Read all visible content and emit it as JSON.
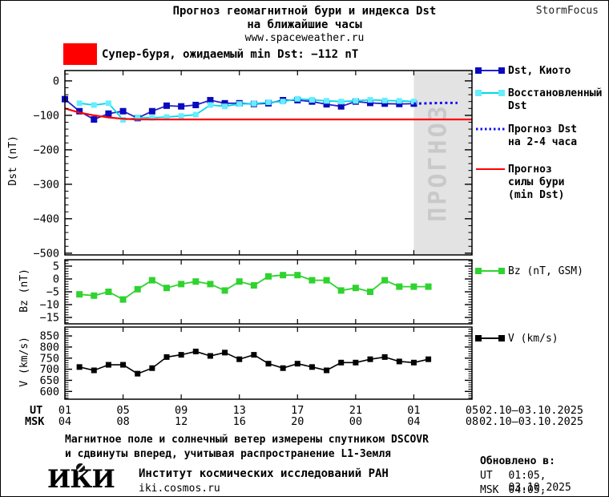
{
  "header": {
    "title_line1": "Прогноз геомагнитной бури и индекса Dst",
    "title_line2": "на ближайшие часы",
    "website": "www.spaceweather.ru",
    "brand": "StormFocus"
  },
  "storm_banner": {
    "swatch_color": "#FF0000",
    "text": "Супер-буря, ожидаемый min Dst: −112 nT"
  },
  "axis_titles": {
    "dst": "Dst (nT)",
    "bz": "Bz (nT)",
    "v": "V (km/s)"
  },
  "forecast_watermark": "ПРОГНОЗ",
  "legend": [
    {
      "label": "Dst, Киото",
      "color": "#2222CC",
      "marker_color": "#0A0ABE",
      "squares": true,
      "dotted": false
    },
    {
      "label": "Восстановленный\nDst",
      "color": "#00D9E9",
      "marker_color": "#66EEFF",
      "squares": true,
      "dotted": false
    },
    {
      "label": "Прогноз Dst\nна 2-4 часа",
      "color": "#1111EE",
      "marker_color": "#1111EE",
      "squares": false,
      "dotted": true
    },
    {
      "label": "Прогноз\nсилы бури\n(min Dst)",
      "color": "#FF0000",
      "marker_color": "#FF0000",
      "squares": false,
      "dotted": false
    },
    {
      "label": "Bz (nT, GSM)",
      "color": "#2FD32F",
      "marker_color": "#2FD32F",
      "squares": true,
      "dotted": false
    },
    {
      "label": "V (km/s)",
      "color": "#000000",
      "marker_color": "#000000",
      "squares": true,
      "dotted": false
    }
  ],
  "x_axis": {
    "ut_label": "UT",
    "msk_label": "MSK",
    "tick_hour_index": [
      0,
      4,
      8,
      12,
      16,
      20,
      24,
      28
    ],
    "ut_ticks": [
      "01",
      "05",
      "09",
      "13",
      "17",
      "21",
      "01",
      "05"
    ],
    "msk_ticks": [
      "04",
      "08",
      "12",
      "16",
      "20",
      "00",
      "04",
      "08"
    ],
    "date_range_ut": "02.10–03.10.2025",
    "date_range_msk": "02.10–03.10.2025"
  },
  "chart_data": [
    {
      "type": "line",
      "ylabel": "Dst (nT)",
      "ylim": [
        -505,
        30
      ],
      "minor_step": 20,
      "yticks": [
        {
          "v": 0,
          "label": "0"
        },
        {
          "v": -100,
          "label": "−100"
        },
        {
          "v": -200,
          "label": "−200"
        },
        {
          "v": -300,
          "label": "−300"
        },
        {
          "v": -400,
          "label": "−400"
        },
        {
          "v": -500,
          "label": "−500"
        }
      ],
      "x_start_hour_ut": 1,
      "forecast_region": {
        "start": 24,
        "color": "#E3E3E3",
        "label_color": "#C9C9C9"
      },
      "series": [
        {
          "name": "Dst, Киото",
          "color": "#2222CC",
          "marker_color": "#0A0ABE",
          "marker": 8,
          "width": 1.8,
          "style": "solid",
          "start": 0,
          "values": [
            -53,
            -88,
            -112,
            -95,
            -88,
            -108,
            -88,
            -72,
            -74,
            -70,
            -56,
            -65,
            -65,
            -67,
            -65,
            -56,
            -56,
            -60,
            -68,
            -74,
            -60,
            -64,
            -66,
            -67,
            -66
          ]
        },
        {
          "name": "Восстановленный Dst",
          "color": "#00D9E9",
          "marker_color": "#66EEFF",
          "marker": 7,
          "width": 1.8,
          "style": "solid",
          "start": 1,
          "values": [
            -65,
            -70,
            -65,
            -113,
            -107,
            -107,
            -105,
            -102,
            -98,
            -70,
            -74,
            -67,
            -66,
            -62,
            -60,
            -52,
            -55,
            -58,
            -60,
            -58,
            -55,
            -57,
            -58,
            -60
          ]
        },
        {
          "name": "Прогноз Dst на 2-4 часа",
          "color": "#1111EE",
          "marker": 0,
          "width": 3,
          "style": "dotted",
          "start": 24,
          "values": [
            -66,
            -65,
            -64,
            -64
          ]
        },
        {
          "name": "Прогноз силы бури (min Dst)",
          "color": "#FF0000",
          "marker": 0,
          "width": 2.2,
          "style": "solid",
          "start": 0,
          "values": [
            -80,
            -92,
            -100,
            -106,
            -110,
            -112,
            -112,
            -112,
            -112,
            -112,
            -112,
            -112,
            -112,
            -112,
            -112,
            -112,
            -112,
            -112,
            -112,
            -112,
            -112,
            -112,
            -112,
            -112,
            -112,
            -112,
            -112,
            -112,
            -112
          ]
        }
      ]
    },
    {
      "type": "line",
      "ylabel": "Bz (nT)",
      "ylim": [
        -17.5,
        7.5
      ],
      "minor_step": 1,
      "yticks": [
        {
          "v": 5,
          "label": "5"
        },
        {
          "v": 0,
          "label": "0"
        },
        {
          "v": -5,
          "label": "−5"
        },
        {
          "v": -10,
          "label": "−10"
        },
        {
          "v": -15,
          "label": "−15"
        }
      ],
      "x_start_hour_ut": 1,
      "series": [
        {
          "name": "Bz (nT, GSM)",
          "color": "#2FD32F",
          "marker_color": "#2FD32F",
          "marker": 8,
          "width": 1.8,
          "style": "solid",
          "start": 1,
          "values": [
            -6,
            -6.5,
            -5,
            -8,
            -4,
            -0.5,
            -3.5,
            -2,
            -1,
            -2,
            -4.5,
            -1,
            -2.5,
            1,
            1.5,
            1.5,
            -0.5,
            -0.5,
            -4.5,
            -3.5,
            -5,
            -0.5,
            -3,
            -3,
            -3
          ]
        }
      ]
    },
    {
      "type": "line",
      "ylabel": "V (km/s)",
      "ylim": [
        565,
        890
      ],
      "minor_step": 10,
      "yticks": [
        {
          "v": 850,
          "label": "850"
        },
        {
          "v": 800,
          "label": "800"
        },
        {
          "v": 750,
          "label": "750"
        },
        {
          "v": 700,
          "label": "700"
        },
        {
          "v": 650,
          "label": "650"
        },
        {
          "v": 600,
          "label": "600"
        }
      ],
      "x_start_hour_ut": 1,
      "series": [
        {
          "name": "V (km/s)",
          "color": "#000000",
          "marker_color": "#000000",
          "marker": 7,
          "width": 1.6,
          "style": "solid",
          "start": 1,
          "values": [
            710,
            695,
            720,
            720,
            680,
            705,
            755,
            765,
            780,
            760,
            775,
            745,
            765,
            725,
            705,
            725,
            710,
            695,
            730,
            730,
            745,
            755,
            735,
            730,
            745
          ]
        }
      ]
    }
  ],
  "footer": {
    "note_line1": "Магнитное поле и солнечный ветер измерены спутником DSCOVR",
    "note_line2": "и сдвинуты вперед, учитывая распространение L1-Земля",
    "logo": "ИКИ",
    "institute": "Институт космических исследований РАН",
    "website": "iki.cosmos.ru",
    "updated_label": "Обновлено в:",
    "updated_rows": [
      {
        "tz": "UT",
        "time": "01:05, 03.10.2025"
      },
      {
        "tz": "MSK",
        "time": "04:05, 03.10.2025"
      }
    ]
  }
}
